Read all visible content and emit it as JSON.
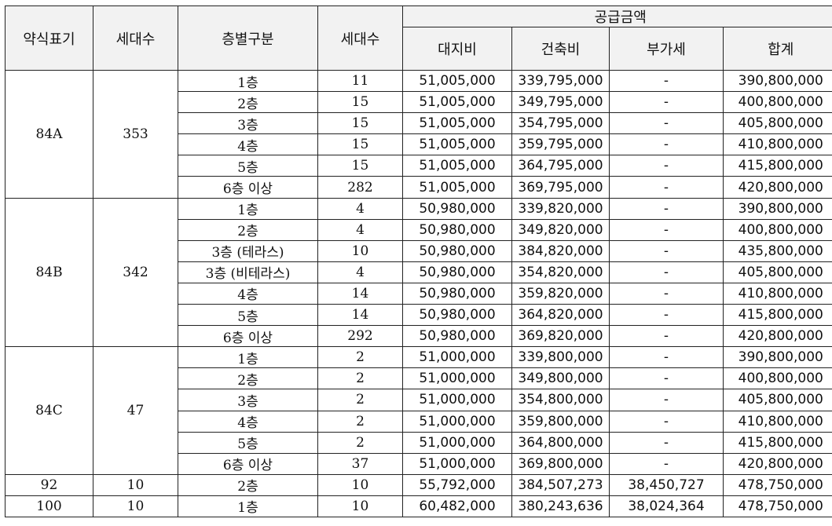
{
  "header": {
    "type_label": "약식표기",
    "units_label": "세대수",
    "floor_label": "층별구분",
    "floor_units_label": "세대수",
    "supply_group_label": "공급금액",
    "land_label": "대지비",
    "building_label": "건축비",
    "vat_label": "부가세",
    "total_label": "합계"
  },
  "groups": [
    {
      "type": "84A",
      "units": "353",
      "rows": [
        {
          "floor": "1층",
          "units": "11",
          "land": "51,005,000",
          "building": "339,795,000",
          "vat": "-",
          "total": "390,800,000"
        },
        {
          "floor": "2층",
          "units": "15",
          "land": "51,005,000",
          "building": "349,795,000",
          "vat": "-",
          "total": "400,800,000"
        },
        {
          "floor": "3층",
          "units": "15",
          "land": "51,005,000",
          "building": "354,795,000",
          "vat": "-",
          "total": "405,800,000"
        },
        {
          "floor": "4층",
          "units": "15",
          "land": "51,005,000",
          "building": "359,795,000",
          "vat": "-",
          "total": "410,800,000"
        },
        {
          "floor": "5층",
          "units": "15",
          "land": "51,005,000",
          "building": "364,795,000",
          "vat": "-",
          "total": "415,800,000"
        },
        {
          "floor": "6층 이상",
          "units": "282",
          "land": "51,005,000",
          "building": "369,795,000",
          "vat": "-",
          "total": "420,800,000"
        }
      ]
    },
    {
      "type": "84B",
      "units": "342",
      "rows": [
        {
          "floor": "1층",
          "units": "4",
          "land": "50,980,000",
          "building": "339,820,000",
          "vat": "-",
          "total": "390,800,000"
        },
        {
          "floor": "2층",
          "units": "4",
          "land": "50,980,000",
          "building": "349,820,000",
          "vat": "-",
          "total": "400,800,000"
        },
        {
          "floor": "3층 (테라스)",
          "units": "10",
          "land": "50,980,000",
          "building": "384,820,000",
          "vat": "-",
          "total": "435,800,000"
        },
        {
          "floor": "3층 (비테라스)",
          "units": "4",
          "land": "50,980,000",
          "building": "354,820,000",
          "vat": "-",
          "total": "405,800,000"
        },
        {
          "floor": "4층",
          "units": "14",
          "land": "50,980,000",
          "building": "359,820,000",
          "vat": "-",
          "total": "410,800,000"
        },
        {
          "floor": "5층",
          "units": "14",
          "land": "50,980,000",
          "building": "364,820,000",
          "vat": "-",
          "total": "415,800,000"
        },
        {
          "floor": "6층 이상",
          "units": "292",
          "land": "50,980,000",
          "building": "369,820,000",
          "vat": "-",
          "total": "420,800,000"
        }
      ]
    },
    {
      "type": "84C",
      "units": "47",
      "rows": [
        {
          "floor": "1층",
          "units": "2",
          "land": "51,000,000",
          "building": "339,800,000",
          "vat": "-",
          "total": "390,800,000"
        },
        {
          "floor": "2층",
          "units": "2",
          "land": "51,000,000",
          "building": "349,800,000",
          "vat": "-",
          "total": "400,800,000"
        },
        {
          "floor": "3층",
          "units": "2",
          "land": "51,000,000",
          "building": "354,800,000",
          "vat": "-",
          "total": "405,800,000"
        },
        {
          "floor": "4층",
          "units": "2",
          "land": "51,000,000",
          "building": "359,800,000",
          "vat": "-",
          "total": "410,800,000"
        },
        {
          "floor": "5층",
          "units": "2",
          "land": "51,000,000",
          "building": "364,800,000",
          "vat": "-",
          "total": "415,800,000"
        },
        {
          "floor": "6층 이상",
          "units": "37",
          "land": "51,000,000",
          "building": "369,800,000",
          "vat": "-",
          "total": "420,800,000"
        }
      ]
    },
    {
      "type": "92",
      "units": "10",
      "rows": [
        {
          "floor": "2층",
          "units": "10",
          "land": "55,792,000",
          "building": "384,507,273",
          "vat": "38,450,727",
          "total": "478,750,000"
        }
      ]
    },
    {
      "type": "100",
      "units": "10",
      "rows": [
        {
          "floor": "1층",
          "units": "10",
          "land": "60,482,000",
          "building": "380,243,636",
          "vat": "38,024,364",
          "total": "478,750,000"
        }
      ]
    }
  ]
}
